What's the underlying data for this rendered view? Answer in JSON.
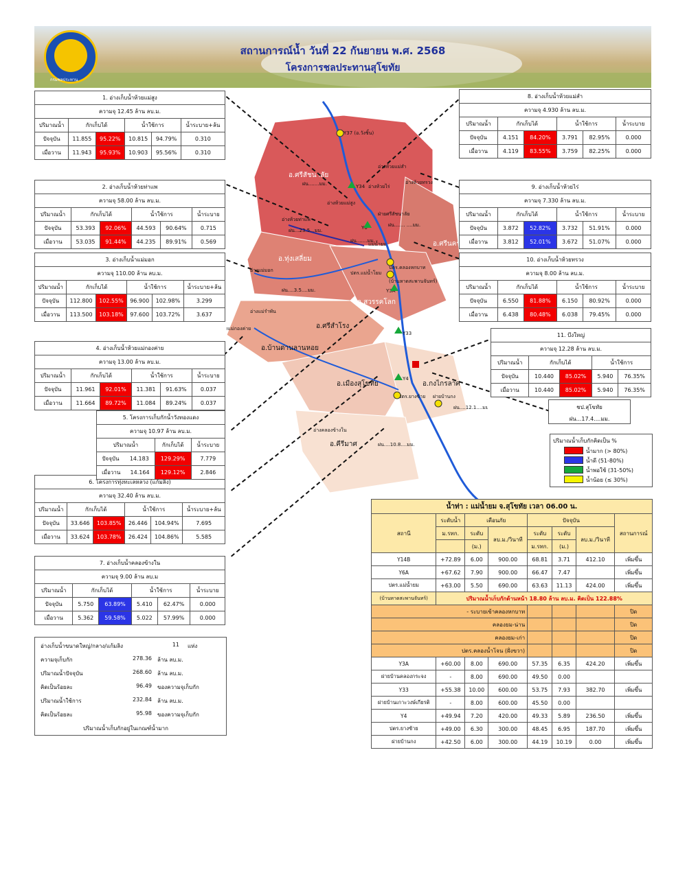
{
  "header": {
    "title": "สถานการณ์น้ำ วันที่ 22 กันยายน พ.ศ. 2568",
    "subtitle": "โครงการชลประทานสุโขทัย",
    "logo_text": "กรมชลประทาน"
  },
  "colors": {
    "red": "#f20000",
    "blue": "#2b35e6",
    "green": "#16a83a",
    "yellow": "#f5f500"
  },
  "common": {
    "col_qty": "ปริมาณน้ำ",
    "col_store": "กักเก็บได้",
    "col_use": "น้ำใช้การ",
    "row_today": "ปัจจุบัน",
    "row_yesterday": "เมื่อวาน"
  },
  "reservoirs": [
    {
      "title": "1. อ่างเก็บน้ำห้วยแม่สูง",
      "capacity": "ความจุ 12.45 ล้าน ลบ.ม.",
      "drain_label": "น้ำระบาย+ล้น",
      "today": {
        "store": "11.855",
        "store_pct": "95.22%",
        "use": "10.815",
        "use_pct": "94.79%",
        "drain": "0.310"
      },
      "yesterday": {
        "store": "11.943",
        "store_pct": "95.93%",
        "use": "10.903",
        "use_pct": "95.56%",
        "drain": "0.310"
      }
    },
    {
      "title": "2. อ่างเก็บน้ำห้วยท่าแพ",
      "capacity": "ความจุ 58.00 ล้าน ลบ.ม.",
      "drain_label": "น้ำระบาย",
      "today": {
        "store": "53.393",
        "store_pct": "92.06%",
        "use": "44.593",
        "use_pct": "90.64%",
        "drain": "0.715"
      },
      "yesterday": {
        "store": "53.035",
        "store_pct": "91.44%",
        "use": "44.235",
        "use_pct": "89.91%",
        "drain": "0.569"
      }
    },
    {
      "title": "3. อ่างเก็บน้ำแม่มอก",
      "capacity": "ความจุ 110.00 ล้าน ลบ.ม.",
      "drain_label": "น้ำระบาย+ล้น",
      "today": {
        "store": "112.800",
        "store_pct": "102.55%",
        "use": "96.900",
        "use_pct": "102.98%",
        "drain": "3.299"
      },
      "yesterday": {
        "store": "113.500",
        "store_pct": "103.18%",
        "use": "97.600",
        "use_pct": "103.72%",
        "drain": "3.637"
      }
    },
    {
      "title": "4. อ่างเก็บน้ำห้วยแม่กองค่าย",
      "capacity": "ความจุ 13.00 ล้าน ลบ.ม.",
      "drain_label": "น้ำระบาย",
      "today": {
        "store": "11.961",
        "store_pct": "92.01%",
        "use": "11.381",
        "use_pct": "91.63%",
        "drain": "0.037"
      },
      "yesterday": {
        "store": "11.664",
        "store_pct": "89.72%",
        "use": "11.084",
        "use_pct": "89.24%",
        "drain": "0.037"
      }
    },
    {
      "title": "6. โครงการทุ่งทะเลหลวง (แก้มลิง)",
      "capacity": "ความจุ 32.40 ล้าน ลบ.ม.",
      "drain_label": "น้ำระบาย+ล้น",
      "today": {
        "store": "33.646",
        "store_pct": "103.85%",
        "use": "26.446",
        "use_pct": "104.94%",
        "drain": "7.695"
      },
      "yesterday": {
        "store": "33.624",
        "store_pct": "103.78%",
        "use": "26.424",
        "use_pct": "104.86%",
        "drain": "5.585"
      }
    },
    {
      "title": "7. อ่างเก็บน้ำคลองข้างใน",
      "capacity": "ความจุ 9.00 ล้าน ลบ.ม",
      "drain_label": "น้ำระบาย",
      "today": {
        "store": "5.750",
        "store_pct": "63.89%",
        "use": "5.410",
        "use_pct": "62.47%",
        "drain": "0.000"
      },
      "yesterday": {
        "store": "5.362",
        "store_pct": "59.58%",
        "use": "5.022",
        "use_pct": "57.99%",
        "drain": "0.000"
      }
    },
    {
      "title": "8. อ่างเก็บน้ำห้วยแม่สำ",
      "capacity": "ความจุ 4.930 ล้าน ลบ.ม.",
      "drain_label": "น้ำระบาย",
      "today": {
        "store": "4.151",
        "store_pct": "84.20%",
        "use": "3.791",
        "use_pct": "82.95%",
        "drain": "0.000"
      },
      "yesterday": {
        "store": "4.119",
        "store_pct": "83.55%",
        "use": "3.759",
        "use_pct": "82.25%",
        "drain": "0.000"
      }
    },
    {
      "title": "9. อ่างเก็บน้ำห้วยไร่",
      "capacity": "ความจุ 7.330 ล้าน ลบ.ม.",
      "drain_label": "น้ำระบาย",
      "today": {
        "store": "3.872",
        "store_pct": "52.82%",
        "use": "3.732",
        "use_pct": "51.91%",
        "drain": "0.000"
      },
      "yesterday": {
        "store": "3.812",
        "store_pct": "52.01%",
        "use": "3.672",
        "use_pct": "51.07%",
        "drain": "0.000"
      }
    },
    {
      "title": "10. อ่างเก็บน้ำห้วยทรวง",
      "capacity": "ความจุ 8.00 ล้าน ลบ.ม.",
      "drain_label": "น้ำระบาย",
      "today": {
        "store": "6.550",
        "store_pct": "81.88%",
        "use": "6.150",
        "use_pct": "80.92%",
        "drain": "0.000"
      },
      "yesterday": {
        "store": "6.438",
        "store_pct": "80.48%",
        "use": "6.038",
        "use_pct": "79.45%",
        "drain": "0.000"
      }
    }
  ],
  "wangthongdaeng": {
    "title": "5. โครงการเก็บกักน้ำวังทองแดง",
    "capacity": "ความจุ 10.97 ล้าน ลบ.ม.",
    "drain_label": "น้ำระบาย",
    "today": {
      "store": "14.183",
      "store_pct": "129.29%",
      "drain": "7.779"
    },
    "yesterday": {
      "store": "14.164",
      "store_pct": "129.12%",
      "drain": "2.846"
    }
  },
  "bungyai": {
    "title": "11. บึงใหญ่",
    "capacity": "ความจุ 12.28 ล้าน ลบ.ม.",
    "today": {
      "store": "10.440",
      "store_pct": "85.02%",
      "use": "5.940",
      "use_pct": "76.35%"
    },
    "yesterday": {
      "store": "10.440",
      "store_pct": "85.02%",
      "use": "5.940",
      "use_pct": "76.35%"
    }
  },
  "rain_box": {
    "line1": "ชป.สุโขทัย",
    "line2": "ฝน...17.4....มม."
  },
  "legend": {
    "title": "ปริมาณน้ำเก็บกักคิดเป็น %",
    "items": [
      {
        "label": "น้ำมาก (> 80%)",
        "color": "#f20000"
      },
      {
        "label": "น้ำดี (51-80%)",
        "color": "#2b35e6"
      },
      {
        "label": "น้ำพอใช้ (31-50%)",
        "color": "#16a83a"
      },
      {
        "label": "น้ำน้อย (≤ 30%)",
        "color": "#f5f500"
      }
    ]
  },
  "map_labels": {
    "srisatchanalai": "อ.ศรีสัชนาลัย",
    "thungsaliam": "อ.ทุ่งเสลี่ยม",
    "sawankhalok": "อ.สวรรคโลก",
    "srisamrong": "อ.ศรีสำโรง",
    "banddan": "อ.บ้านด่านลานหอย",
    "mueang": "อ.เมืองสุโขทัย",
    "kongkrailat": "อ.กงไกรลาศ",
    "srinakhon": "อ.ศรีนคร",
    "srisamrong2": "อ.ศรีสำโรง",
    "srisatchanalai_rain": "ฝน.......มม.",
    "thapae_rain": "ฝน...23.5...มม.",
    "mid_rain": "ฝน.......มม.",
    "thung_rain": "ฝน....3.5....มม.",
    "center_rain": "ฝน....... ....มม.",
    "kong_rain": "ฝน....12.1....มม.",
    "khiri_rain": "ฝน....10.8....มม.",
    "khirimat": "อ.คีรีมาศ",
    "y37": "Y37 (อ.วังชิ้น)",
    "y34": "Y34",
    "y6": "Y6",
    "y3a": "Y3A",
    "y33": "Y33",
    "y4": "Y4",
    "maesam": "อ่างห้วยแม่สำ",
    "huairai": "อ่างห้วยไร่",
    "huaisuang": "อ่างห้วยทรวง",
    "huaimaesung": "อ่างห้วยแม่สูง",
    "thapae": "อ่างห้วยท่าแพ",
    "maemok": "อ่างแม่มอก",
    "maekongkhai": "อ่างแม่กองค่าย",
    "maerampan": "อ่างแม่รำพัน",
    "khonglong": "ปตร.คลองหกบาท",
    "maenamyom": "ปตร.แม่น้ำโยม",
    "srisatchanalai_weir": "ฝ่ายศรีสัชนาลัย",
    "yangsai": "ปตร.ยางซ้าย",
    "khlongkhangnai": "อ่างคลองข้างใน",
    "banhat": "(บ้านหาดสะพานจันทร์)",
    "banyai": "ฝายบ้านกง",
    "maeyom": "แม่น้ำยม"
  },
  "water_table": {
    "title": "น้ำท่า : แม่น้ำยม จ.สุโขทัย  เวลา 06.00  น.",
    "h_station": "สถานี",
    "h_bank": "ระดับน้ำ",
    "h_bank2": "ม.รทก.",
    "h_warn": "เตือนภัย",
    "h_now": "ปัจจุบัน",
    "h_status": "สถานการณ์",
    "h_level": "ระดับ",
    "h_m": "(ม.)",
    "h_flow": "ลบ.ม./วินาที",
    "h_msl": "ม.รทก.",
    "h_level2": "ระดับ",
    "h_m2": "(ม.)",
    "h_flow2": "ลบ.ม./วินาที",
    "rows_top": [
      {
        "station": "Y14B",
        "bank": "+72.89",
        "warn_level": "6.00",
        "warn_flow": "900.00",
        "msl": "68.81",
        "level": "3.71",
        "flow": "412.10",
        "status": "เพิ่มขึ้น"
      },
      {
        "station": "Y6A",
        "bank": "+67.62",
        "warn_level": "7.90",
        "warn_flow": "900.00",
        "msl": "66.47",
        "level": "7.47",
        "flow": "",
        "status": "เพิ่มขึ้น"
      },
      {
        "station": "ปตร.แม่น้ำยม",
        "bank": "+63.00",
        "warn_level": "5.50",
        "warn_flow": "690.00",
        "msl": "63.63",
        "level": "11.13",
        "flow": "424.00",
        "status": "เพิ่มขึ้น"
      }
    ],
    "banhat_note": "(บ้านหาดสะพานจันทร์)",
    "upstream_note": "ปริมาณน้ำเก็บกักด้านหน้า 18.80 ล้าน ลบ.ม. คิดเป็น 122.88%",
    "channels": [
      {
        "name": "- ระบายเข้าคลองหกบาท",
        "status": "ปิด"
      },
      {
        "name": "คลองยม-น่าน",
        "status": "ปิด"
      },
      {
        "name": "คลองยม-เก่า",
        "status": "ปิด"
      },
      {
        "name": "ปตร.คลองน้ำโจน (ฝั่งขวา)",
        "status": "ปิด"
      }
    ],
    "rows_bottom": [
      {
        "station": "Y3A",
        "bank": "+60.00",
        "warn_level": "8.00",
        "warn_flow": "690.00",
        "msl": "57.35",
        "level": "6.35",
        "flow": "424.20",
        "status": "เพิ่มขึ้น"
      },
      {
        "station": "ฝายบ้านคลองกระจง",
        "bank": "-",
        "warn_level": "8.00",
        "warn_flow": "690.00",
        "msl": "49.50",
        "level": "0.00",
        "flow": "",
        "status": ""
      },
      {
        "station": "Y33",
        "bank": "+55.38",
        "warn_level": "10.00",
        "warn_flow": "600.00",
        "msl": "53.75",
        "level": "7.93",
        "flow": "382.70",
        "status": "เพิ่มขึ้น"
      },
      {
        "station": "ฝายบ้านเกาะวงษ์เกียรติ",
        "bank": "-",
        "warn_level": "8.00",
        "warn_flow": "600.00",
        "msl": "45.50",
        "level": "0.00",
        "flow": "",
        "status": ""
      },
      {
        "station": "Y4",
        "bank": "+49.94",
        "warn_level": "7.20",
        "warn_flow": "420.00",
        "msl": "49.33",
        "level": "5.89",
        "flow": "236.50",
        "status": "เพิ่มขึ้น"
      },
      {
        "station": "ปตร.ยางซ้าย",
        "bank": "+49.00",
        "warn_level": "6.30",
        "warn_flow": "300.00",
        "msl": "48.45",
        "level": "6.95",
        "flow": "187.70",
        "status": "เพิ่มขึ้น"
      },
      {
        "station": "ฝายบ้านกง",
        "bank": "+42.50",
        "warn_level": "6.00",
        "warn_flow": "300.00",
        "msl": "44.19",
        "level": "10.19",
        "flow": "0.00",
        "status": "เพิ่มขึ้น"
      }
    ]
  },
  "summary": {
    "l1": "อ่างเก็บน้ำขนาดใหญ่/กลาง/แก้มลิง",
    "v1": "11",
    "u1": "แห่ง",
    "l2": "ความจุเก็บกัก",
    "v2": "278.36",
    "u2": "ล้าน ลบ.ม.",
    "l3": "ปริมาณน้ำปัจจุบัน",
    "v3": "268.60",
    "u3": "ล้าน ลบ.ม.",
    "l4": "คิดเป็นร้อยละ",
    "v4": "96.49",
    "u4": "ของความจุเก็บกัก",
    "l5": "ปริมาณน้ำใช้การ",
    "v5": "232.84",
    "u5": "ล้าน ลบ.ม.",
    "l6": "คิดเป็นร้อยละ",
    "v6": "95.98",
    "u6": "ของความจุเก็บกัก",
    "l7": "ปริมาณน้ำเก็บกักอยู่ในเกณฑ์น้ำมาก"
  }
}
